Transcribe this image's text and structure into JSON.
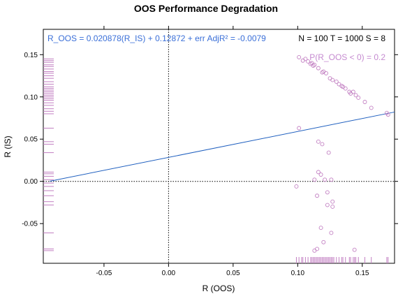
{
  "chart_data": {
    "type": "scatter",
    "title": "OOS Performance Degradation",
    "xlabel": "R (OOS)",
    "ylabel": "R (IS)",
    "xlim": [
      -0.097,
      0.175
    ],
    "ylim": [
      -0.097,
      0.18
    ],
    "x_ticks": [
      -0.05,
      0.0,
      0.05,
      0.1,
      0.15
    ],
    "x_tick_labels": [
      "-0.05",
      "0.00",
      "0.05",
      "0.10",
      "0.15"
    ],
    "y_ticks": [
      -0.05,
      0.0,
      0.05,
      0.1,
      0.15
    ],
    "y_tick_labels": [
      "-0.05",
      "0.00",
      "0.05",
      "0.10",
      "0.15"
    ],
    "regression_text": "R_OOS = 0.020878(R_IS) + 0.12872 + err  AdjR² = -0.0079",
    "regression_line": {
      "x_range": [
        -0.092,
        0.175
      ],
      "slope": 0.3067,
      "intercept": 0.0284
    },
    "stats_text": "N = 100  T = 1000  S = 8",
    "prob_text": "P(R_OOS < 0) = 0.2",
    "reference_lines": {
      "x": 0.0,
      "y": 0.0
    },
    "points": [
      [
        0.101,
        0.147
      ],
      [
        0.104,
        0.143
      ],
      [
        0.106,
        0.145
      ],
      [
        0.108,
        0.142
      ],
      [
        0.11,
        0.139
      ],
      [
        0.111,
        0.14
      ],
      [
        0.112,
        0.137
      ],
      [
        0.113,
        0.138
      ],
      [
        0.116,
        0.134
      ],
      [
        0.119,
        0.129
      ],
      [
        0.12,
        0.13
      ],
      [
        0.122,
        0.128
      ],
      [
        0.125,
        0.122
      ],
      [
        0.127,
        0.12
      ],
      [
        0.13,
        0.118
      ],
      [
        0.132,
        0.115
      ],
      [
        0.134,
        0.113
      ],
      [
        0.135,
        0.112
      ],
      [
        0.137,
        0.11
      ],
      [
        0.14,
        0.106
      ],
      [
        0.141,
        0.104
      ],
      [
        0.143,
        0.106
      ],
      [
        0.145,
        0.102
      ],
      [
        0.147,
        0.099
      ],
      [
        0.152,
        0.094
      ],
      [
        0.157,
        0.087
      ],
      [
        0.169,
        0.081
      ],
      [
        0.17,
        0.079
      ],
      [
        0.101,
        0.063
      ],
      [
        0.116,
        0.047
      ],
      [
        0.119,
        0.044
      ],
      [
        0.124,
        0.034
      ],
      [
        0.116,
        0.011
      ],
      [
        0.118,
        0.008
      ],
      [
        0.113,
        0.002
      ],
      [
        0.121,
        0.002
      ],
      [
        0.126,
        0.002
      ],
      [
        0.099,
        -0.006
      ],
      [
        0.123,
        -0.013
      ],
      [
        0.115,
        -0.017
      ],
      [
        0.127,
        -0.024
      ],
      [
        0.123,
        -0.028
      ],
      [
        0.127,
        -0.03
      ],
      [
        0.118,
        -0.055
      ],
      [
        0.126,
        -0.061
      ],
      [
        0.12,
        -0.072
      ],
      [
        0.115,
        -0.08
      ],
      [
        0.113,
        -0.082
      ],
      [
        0.144,
        -0.081
      ]
    ],
    "rug_y": [
      0.145,
      0.143,
      0.141,
      0.138,
      0.136,
      0.133,
      0.13,
      0.128,
      0.125,
      0.122,
      0.118,
      0.115,
      0.112,
      0.11,
      0.108,
      0.106,
      0.104,
      0.102,
      0.1,
      0.098,
      0.096,
      0.093,
      0.09,
      0.086,
      0.083,
      0.08,
      0.063,
      0.047,
      0.044,
      0.034,
      0.011,
      0.009,
      0.006,
      0.002,
      -0.002,
      -0.006,
      -0.011,
      -0.017,
      -0.024,
      -0.028,
      -0.061,
      -0.08,
      -0.082
    ],
    "rug_x": [
      0.099,
      0.101,
      0.103,
      0.104,
      0.106,
      0.108,
      0.11,
      0.111,
      0.112,
      0.113,
      0.114,
      0.115,
      0.116,
      0.117,
      0.118,
      0.119,
      0.12,
      0.121,
      0.122,
      0.123,
      0.124,
      0.125,
      0.126,
      0.127,
      0.128,
      0.13,
      0.132,
      0.134,
      0.135,
      0.137,
      0.14,
      0.141,
      0.143,
      0.144,
      0.145,
      0.147,
      0.152,
      0.157,
      0.169,
      0.17
    ],
    "colors": {
      "points": "#c27fc2",
      "rug": "#c27fc2",
      "regression": "#1f5fbf",
      "equation_text": "#3a6fd8",
      "prob_text": "#c58ad0",
      "reference": "#000000"
    },
    "grid": false
  }
}
